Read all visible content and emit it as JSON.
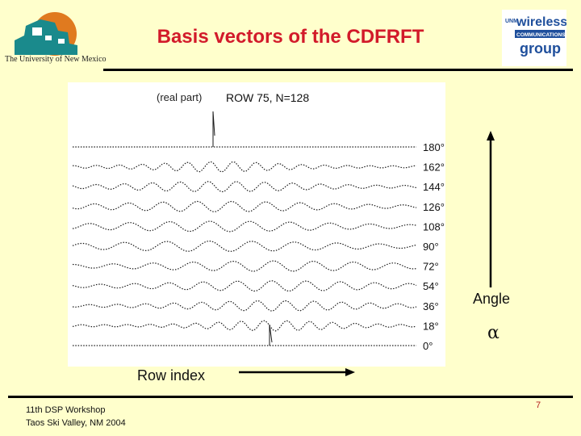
{
  "slide": {
    "title": "Basis vectors of the CDFRFT",
    "page_number": "7",
    "footer": {
      "line1": "11th DSP Workshop",
      "line2": "Taos Ski Valley, NM 2004"
    }
  },
  "logos": {
    "unm": {
      "caption": "The University of New Mexico",
      "icon": "unm-building-logo",
      "colors": {
        "teal": "#1a8a8c",
        "orange": "#e07a1f"
      }
    },
    "wcg": {
      "lines": [
        "wireless",
        "COMMUNICATIONS",
        "group"
      ],
      "prefix": "UNM",
      "icon": "wireless-communications-group-logo",
      "color": "#1f4f9c"
    }
  },
  "figure": {
    "part_label": "(real part)",
    "row_label": "ROW 75, N=128",
    "angles": [
      "180°",
      "162°",
      "144°",
      "126°",
      "108°",
      "90°",
      "72°",
      "54°",
      "36°",
      "18°",
      "0°"
    ]
  },
  "axes": {
    "angle_label": "Angle",
    "alpha_symbol": "α",
    "row_index_label": "Row index"
  },
  "colors": {
    "title": "#d21a2a",
    "background": "#ffffcc",
    "plot_background": "#ffffff",
    "trace": "#1a1a1a"
  }
}
